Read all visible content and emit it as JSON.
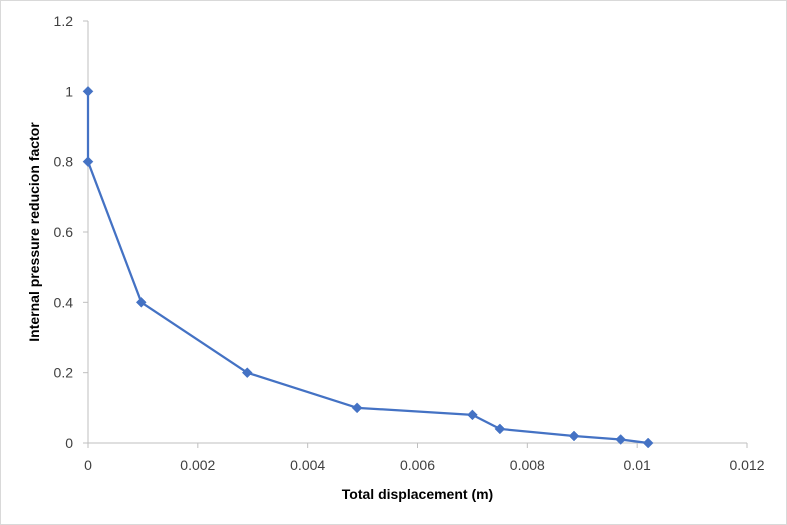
{
  "chart_data": {
    "type": "scatter",
    "title": "",
    "xlabel": "Total displacement (m)",
    "ylabel": "Internal pressure reducion factor",
    "xlim": [
      0,
      0.012
    ],
    "ylim": [
      0,
      1.2
    ],
    "x_ticks": [
      "0",
      "0.002",
      "0.004",
      "0.006",
      "0.008",
      "0.01",
      "0.012"
    ],
    "y_ticks": [
      "0",
      "0.2",
      "0.4",
      "0.6",
      "0.8",
      "1",
      "1.2"
    ],
    "x_tick_values": [
      0,
      0.002,
      0.004,
      0.006,
      0.008,
      0.01,
      0.012
    ],
    "y_tick_values": [
      0,
      0.2,
      0.4,
      0.6,
      0.8,
      1.0,
      1.2
    ],
    "grid": false,
    "legend": "none",
    "marker": "diamond",
    "lines": true,
    "series": [
      {
        "color": "#4472c4",
        "x": [
          0,
          0,
          0.00097,
          0.0029,
          0.0049,
          0.007,
          0.0075,
          0.00885,
          0.0097,
          0.0102
        ],
        "y": [
          1.0,
          0.8,
          0.4,
          0.2,
          0.1,
          0.08,
          0.04,
          0.02,
          0.01,
          0.0
        ]
      }
    ]
  }
}
